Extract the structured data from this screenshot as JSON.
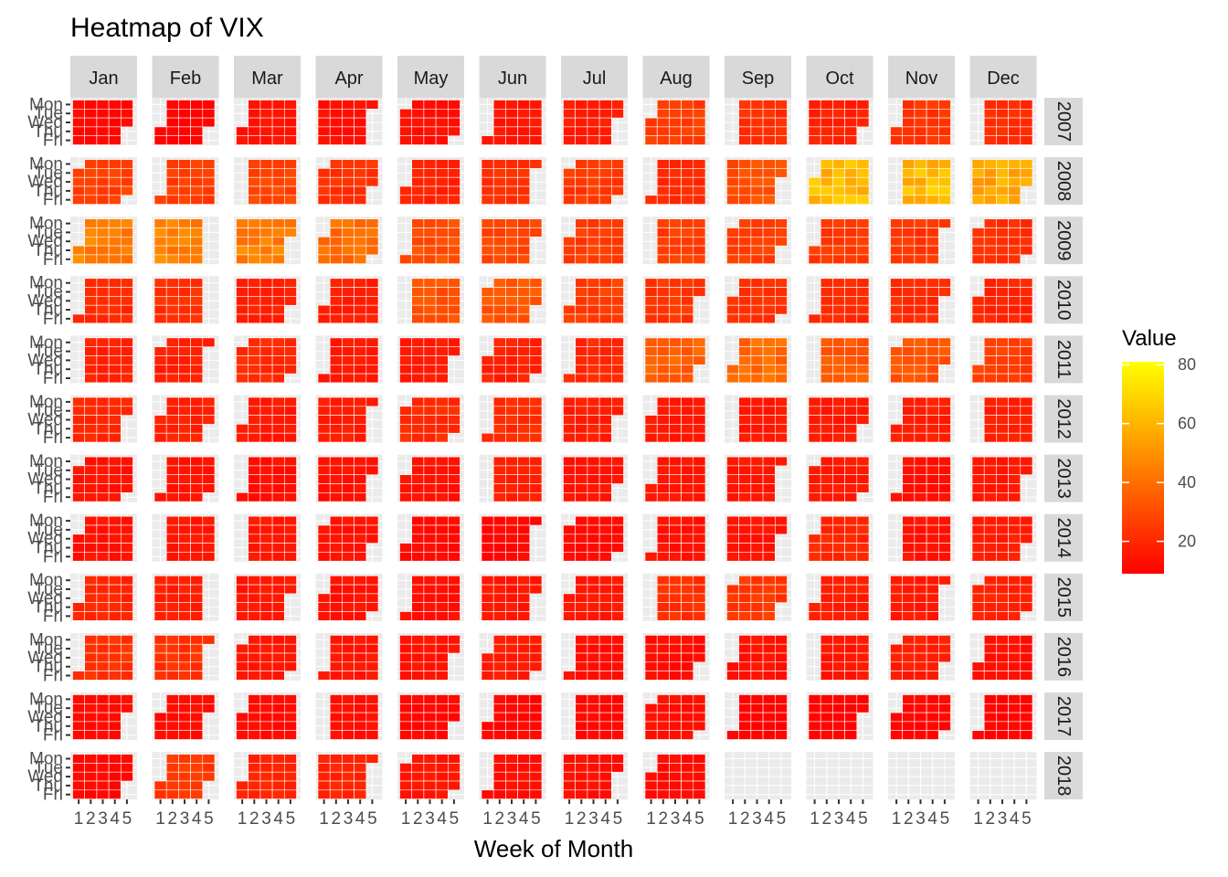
{
  "chart_data": {
    "type": "heatmap",
    "title": "Heatmap of VIX",
    "xlabel": "Week of Month",
    "ylabel": "",
    "x_tick_labels": [
      "1",
      "2",
      "3",
      "4",
      "5"
    ],
    "y_tick_labels": [
      "Mon",
      "Tue",
      "Wed",
      "Thu",
      "Fri"
    ],
    "months": [
      "Jan",
      "Feb",
      "Mar",
      "Apr",
      "May",
      "Jun",
      "Jul",
      "Aug",
      "Sep",
      "Oct",
      "Nov",
      "Dec"
    ],
    "years": [
      "2007",
      "2008",
      "2009",
      "2010",
      "2011",
      "2012",
      "2013",
      "2014",
      "2015",
      "2016",
      "2017",
      "2018"
    ],
    "legend": {
      "title": "Value",
      "breaks": [
        20,
        40,
        60,
        80
      ],
      "min": 9,
      "max": 81,
      "colors": [
        "#ff0000",
        "#ffff00"
      ],
      "placement": "right"
    },
    "monthly_avg": {
      "2007": [
        11,
        10,
        14,
        13,
        13,
        15,
        17,
        26,
        22,
        18,
        24,
        21
      ],
      "2008": [
        27,
        26,
        28,
        23,
        18,
        22,
        25,
        21,
        31,
        61,
        62,
        56
      ],
      "2009": [
        45,
        45,
        45,
        40,
        31,
        28,
        26,
        26,
        26,
        25,
        24,
        22
      ],
      "2010": [
        20,
        22,
        18,
        17,
        32,
        33,
        26,
        24,
        23,
        21,
        21,
        19
      ],
      "2011": [
        18,
        18,
        21,
        16,
        16,
        18,
        20,
        36,
        39,
        34,
        32,
        26
      ],
      "2012": [
        20,
        18,
        16,
        17,
        21,
        21,
        17,
        16,
        16,
        16,
        17,
        17
      ],
      "2013": [
        14,
        14,
        13,
        14,
        14,
        18,
        14,
        15,
        15,
        16,
        13,
        15
      ],
      "2014": [
        14,
        15,
        15,
        14,
        12,
        11,
        12,
        14,
        14,
        20,
        14,
        17
      ],
      "2015": [
        19,
        17,
        15,
        14,
        13,
        15,
        15,
        22,
        25,
        17,
        16,
        18
      ],
      "2016": [
        23,
        23,
        15,
        15,
        14,
        17,
        13,
        12,
        14,
        15,
        17,
        13
      ],
      "2017": [
        12,
        12,
        12,
        13,
        11,
        11,
        11,
        13,
        10,
        10,
        11,
        10
      ],
      "2018": [
        11,
        25,
        19,
        19,
        15,
        13,
        13,
        12,
        null,
        null,
        null,
        null
      ]
    },
    "axis_ranges": {
      "x": [
        1,
        5
      ],
      "y": [
        "Mon",
        "Fri"
      ],
      "value": [
        9,
        81
      ]
    },
    "grid": true
  }
}
